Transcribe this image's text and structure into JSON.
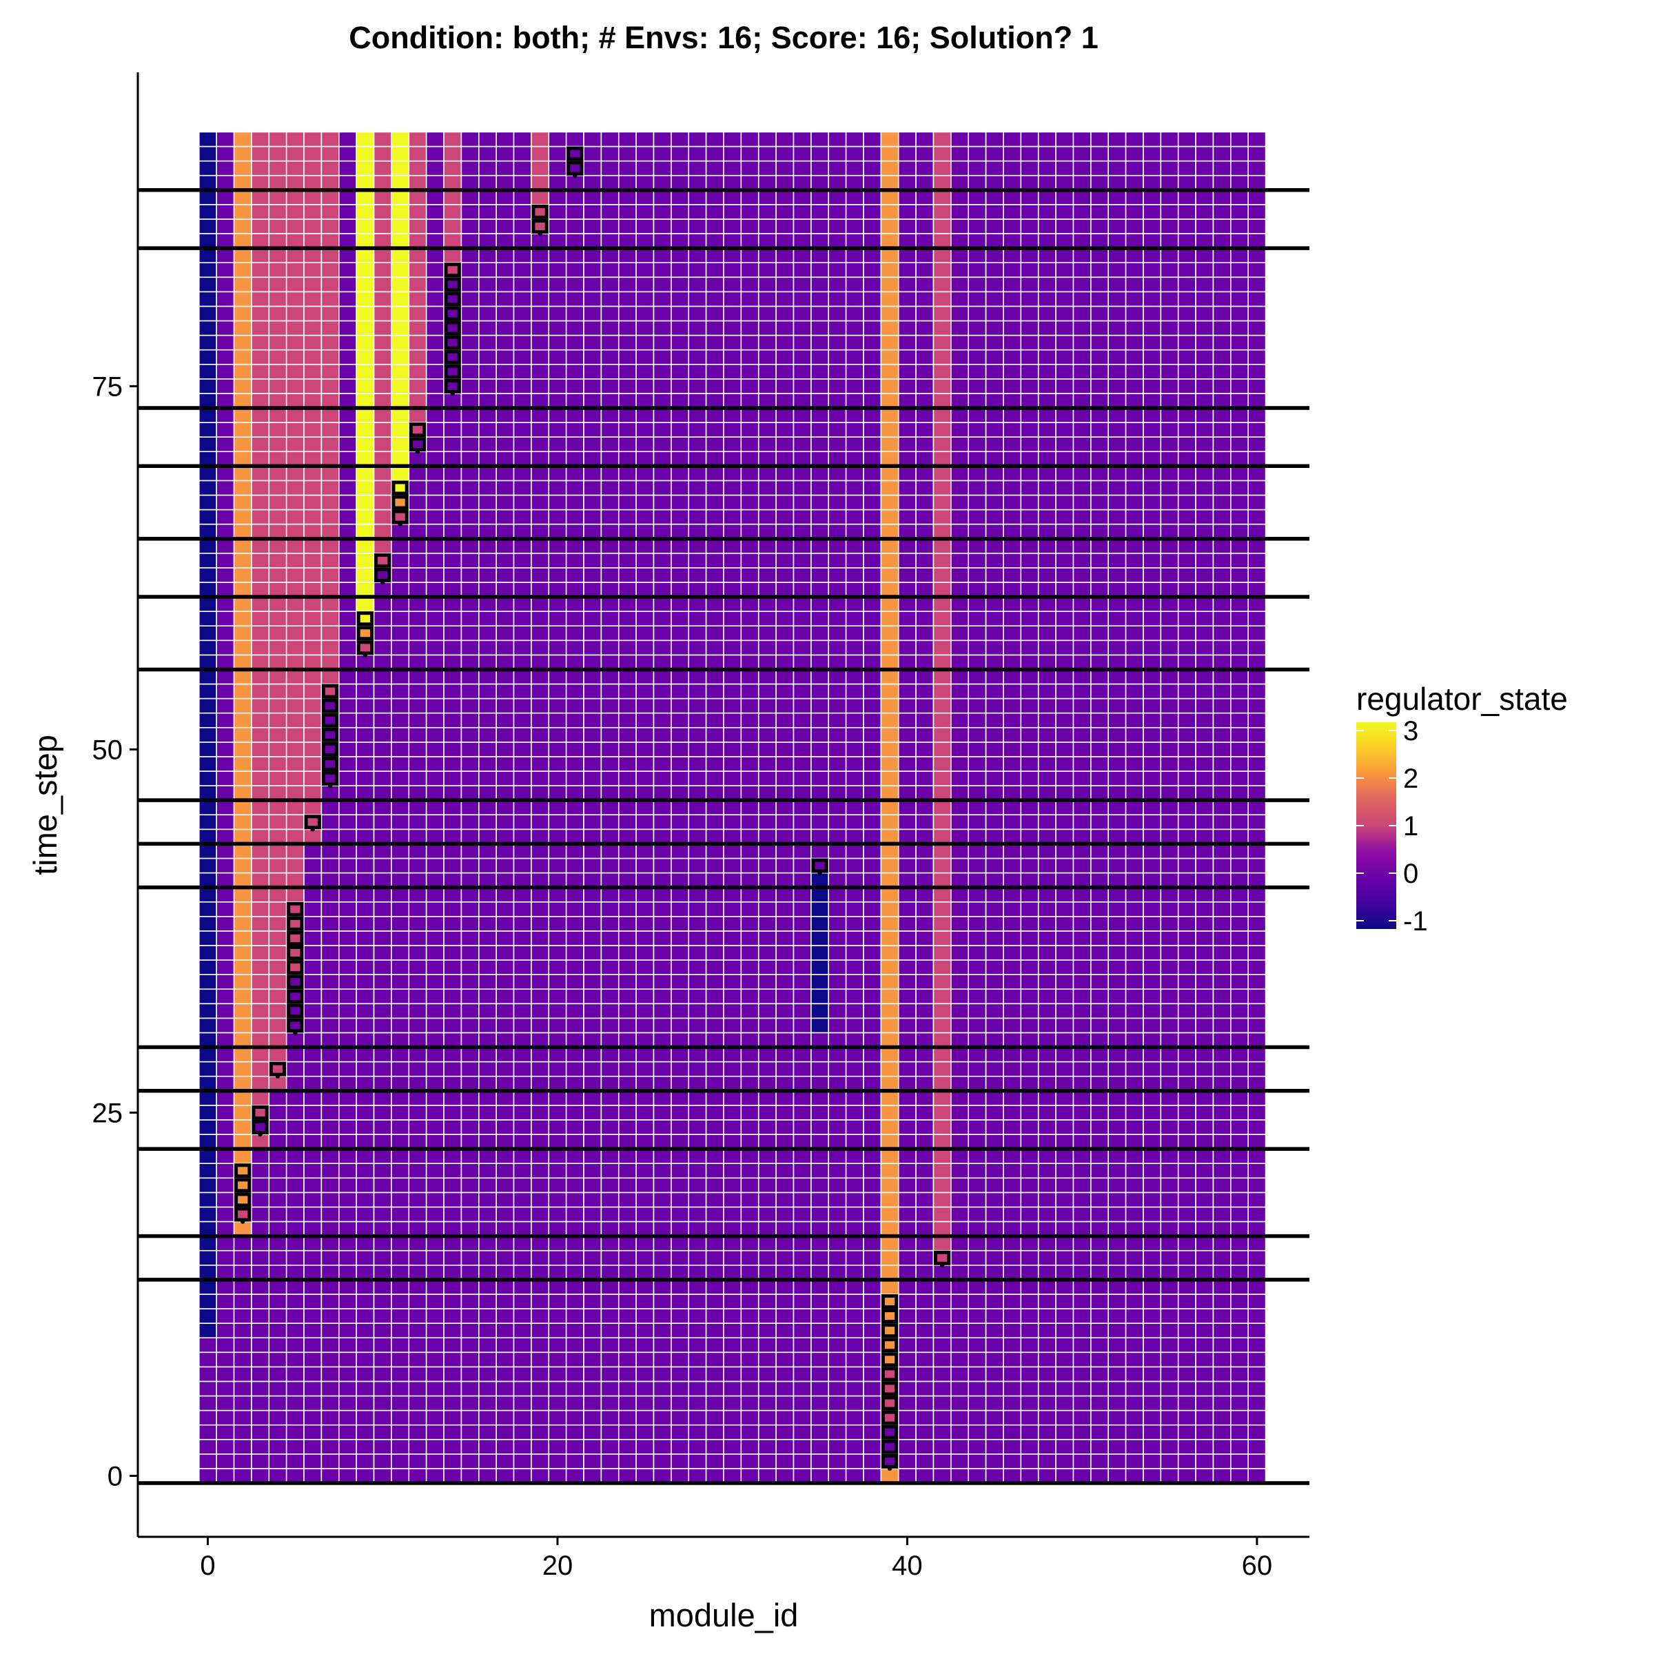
{
  "chart_data": {
    "type": "heatmap",
    "title": "Condition: both; # Envs: 16; Score: 16; Solution? 1",
    "xlabel": "module_id",
    "ylabel": "time_step",
    "xlim": [
      -4,
      63
    ],
    "ylim": [
      -4.2,
      96.6
    ],
    "x_ticks": [
      0,
      20,
      40,
      60
    ],
    "y_ticks": [
      0,
      25,
      50,
      75
    ],
    "x_tick_labels": [
      "0",
      "20",
      "40",
      "60"
    ],
    "y_tick_labels": [
      "0",
      "25",
      "50",
      "75"
    ],
    "grid": false,
    "tile_grid_color": "#ffffff",
    "modules": [
      0,
      60
    ],
    "time_steps": [
      0,
      92
    ],
    "background_state": 0,
    "column_states": [
      {
        "module": 0,
        "from": 10,
        "to": 92,
        "state": -1
      },
      {
        "module": 2,
        "from": 17,
        "to": 92,
        "state": 2
      },
      {
        "module": 3,
        "from": 23,
        "to": 92,
        "state": 1
      },
      {
        "module": 4,
        "from": 27,
        "to": 92,
        "state": 1
      },
      {
        "module": 5,
        "from": 40,
        "to": 92,
        "state": 1
      },
      {
        "module": 6,
        "from": 44,
        "to": 92,
        "state": 1
      },
      {
        "module": 7,
        "from": 55,
        "to": 92,
        "state": 1
      },
      {
        "module": 9,
        "from": 59,
        "to": 92,
        "state": 3
      },
      {
        "module": 10,
        "from": 64,
        "to": 92,
        "state": 1
      },
      {
        "module": 11,
        "from": 69,
        "to": 92,
        "state": 3
      },
      {
        "module": 12,
        "from": 73,
        "to": 92,
        "state": 1
      },
      {
        "module": 14,
        "from": 84,
        "to": 92,
        "state": 1
      },
      {
        "module": 19,
        "from": 88,
        "to": 92,
        "state": 1
      },
      {
        "module": 35,
        "from": 31,
        "to": 41,
        "state": -1
      },
      {
        "module": 39,
        "from": 0,
        "to": 92,
        "state": 2
      },
      {
        "module": 42,
        "from": 15,
        "to": 92,
        "state": 1
      }
    ],
    "outlined_states": [
      {
        "module": 2,
        "steps": [
          [
            18,
            1
          ],
          [
            19,
            2
          ],
          [
            20,
            2
          ],
          [
            21,
            2
          ]
        ]
      },
      {
        "module": 3,
        "steps": [
          [
            24,
            0
          ],
          [
            25,
            1
          ]
        ]
      },
      {
        "module": 4,
        "steps": [
          [
            28,
            1
          ]
        ]
      },
      {
        "module": 5,
        "steps": [
          [
            31,
            0
          ],
          [
            32,
            0
          ],
          [
            33,
            0
          ],
          [
            34,
            0
          ],
          [
            35,
            1
          ],
          [
            36,
            1
          ],
          [
            37,
            1
          ],
          [
            38,
            1
          ],
          [
            39,
            1
          ]
        ]
      },
      {
        "module": 6,
        "steps": [
          [
            45,
            1
          ]
        ]
      },
      {
        "module": 7,
        "steps": [
          [
            48,
            0
          ],
          [
            49,
            0
          ],
          [
            50,
            0
          ],
          [
            51,
            0
          ],
          [
            52,
            0
          ],
          [
            53,
            0
          ],
          [
            54,
            1
          ]
        ]
      },
      {
        "module": 9,
        "steps": [
          [
            57,
            1
          ],
          [
            58,
            2
          ],
          [
            59,
            3
          ]
        ]
      },
      {
        "module": 10,
        "steps": [
          [
            62,
            0
          ],
          [
            63,
            1
          ]
        ]
      },
      {
        "module": 11,
        "steps": [
          [
            66,
            1
          ],
          [
            67,
            2
          ],
          [
            68,
            3
          ]
        ]
      },
      {
        "module": 12,
        "steps": [
          [
            71,
            0
          ],
          [
            72,
            1
          ]
        ]
      },
      {
        "module": 14,
        "steps": [
          [
            75,
            0
          ],
          [
            76,
            0
          ],
          [
            77,
            0
          ],
          [
            78,
            0
          ],
          [
            79,
            0
          ],
          [
            80,
            0
          ],
          [
            81,
            0
          ],
          [
            82,
            0
          ],
          [
            83,
            1
          ]
        ]
      },
      {
        "module": 19,
        "steps": [
          [
            86,
            1
          ],
          [
            87,
            1
          ]
        ]
      },
      {
        "module": 21,
        "steps": [
          [
            90,
            0
          ],
          [
            91,
            0
          ]
        ]
      },
      {
        "module": 35,
        "steps": [
          [
            42,
            0
          ]
        ]
      },
      {
        "module": 39,
        "steps": [
          [
            1,
            0
          ],
          [
            2,
            0
          ],
          [
            3,
            0
          ],
          [
            4,
            1
          ],
          [
            5,
            1
          ],
          [
            6,
            1
          ],
          [
            7,
            1
          ],
          [
            8,
            2
          ],
          [
            9,
            2
          ],
          [
            10,
            2
          ],
          [
            11,
            2
          ],
          [
            12,
            2
          ]
        ]
      },
      {
        "module": 42,
        "steps": [
          [
            15,
            1
          ]
        ]
      }
    ],
    "environment_change_lines": [
      -0.5,
      13.5,
      16.5,
      22.5,
      26.5,
      29.5,
      40.5,
      43.5,
      46.5,
      55.5,
      60.5,
      64.5,
      69.5,
      73.5,
      84.5,
      88.5
    ],
    "legend": {
      "title": "regulator_state",
      "position": "right",
      "min": -1,
      "max": 3,
      "ticks": [
        3,
        2,
        1,
        0,
        -1
      ],
      "tick_labels": [
        "3",
        "2",
        "1",
        "0",
        "-1"
      ]
    },
    "colormap": {
      "-1": "#0d0887",
      "0": "#6a00a8",
      "1": "#cc4778",
      "2": "#f89540",
      "3": "#f0f921"
    },
    "colormap_stops": [
      [
        0.0,
        "#0d0887"
      ],
      [
        0.125,
        "#41049d"
      ],
      [
        0.25,
        "#6a00a8"
      ],
      [
        0.375,
        "#8f0da4"
      ],
      [
        0.5,
        "#cc4778"
      ],
      [
        0.625,
        "#e16462"
      ],
      [
        0.75,
        "#f89540"
      ],
      [
        0.875,
        "#fcce25"
      ],
      [
        1.0,
        "#f0f921"
      ]
    ]
  }
}
